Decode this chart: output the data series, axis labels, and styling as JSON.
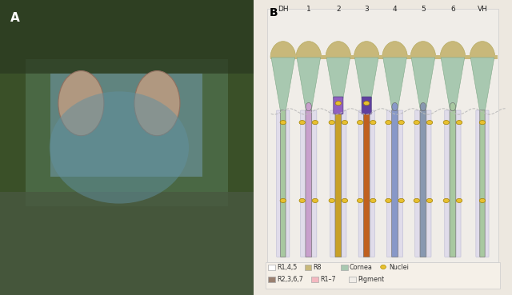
{
  "fig_width": 6.4,
  "fig_height": 3.69,
  "dpi": 100,
  "bg_color": "#ede8e0",
  "panel_b_bg": "#f2ede5",
  "cornea_color": "#a8c8b0",
  "r8_color": "#c8b87a",
  "pigment_color": "#f0ede8",
  "r1_4_5_color": "#ffffff",
  "r2_3_6_7_color": "#9a8070",
  "r1_7_color": "#f4b8c0",
  "nuclei_color": "#e8c030",
  "col_labels": [
    "DH",
    "1",
    "2",
    "3",
    "4",
    "5",
    "6",
    "VH"
  ],
  "cx_map": {
    "DH": 1.1,
    "1": 2.05,
    "2": 3.15,
    "3": 4.2,
    "4": 5.25,
    "5": 6.3,
    "6": 7.4,
    "VH": 8.5
  },
  "rhabdom_colors": {
    "DH": "#a8c8a0",
    "1": "#c8a0cc",
    "2": "#c8a028",
    "3": "#c06020",
    "4": "#8898c8",
    "5": "#8898b0",
    "6": "#a8c8a0",
    "VH": "#a8c8a0"
  },
  "legend_row1": [
    {
      "label": "R1,4,5",
      "fc": "#ffffff",
      "ec": "#aaaaaa"
    },
    {
      "label": "R8",
      "fc": "#c8b87a",
      "ec": "#aaaaaa"
    },
    {
      "label": "Cornea",
      "fc": "#a8c8b0",
      "ec": "#aaaaaa"
    },
    {
      "label": "Nuclei",
      "fc": "#e8c030",
      "ec": "#b09000",
      "circle": true
    }
  ],
  "legend_row2": [
    {
      "label": "R2,3,6,7",
      "fc": "#9a8070",
      "ec": "#aaaaaa"
    },
    {
      "label": "R1–7",
      "fc": "#f4b8c0",
      "ec": "#aaaaaa"
    },
    {
      "label": "Pigment",
      "fc": "#f0ede8",
      "ec": "#aaaaaa"
    }
  ]
}
